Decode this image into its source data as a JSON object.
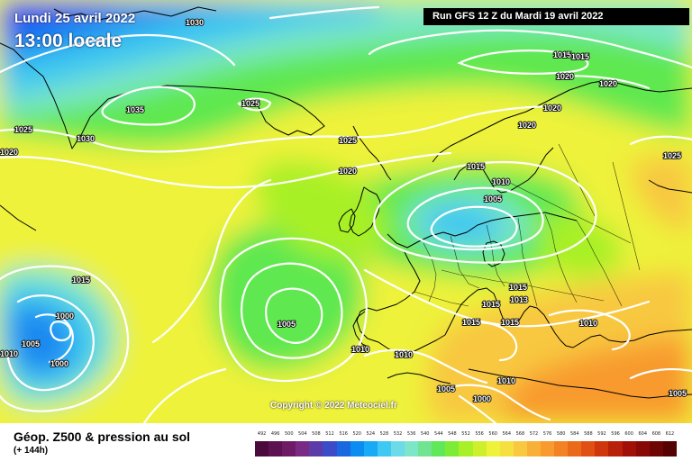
{
  "header": {
    "date": "Lundi 25 avril 2022",
    "time": "13:00 locale",
    "run": "Run GFS 12 Z du Mardi 19 avril 2022"
  },
  "footer": {
    "title": "Géop. Z500 & pression au sol",
    "subtitle": "(+ 144h)",
    "copyright": "Copyright © 2022 Meteociel.fr"
  },
  "legend": {
    "values": [
      "492",
      "496",
      "500",
      "504",
      "508",
      "512",
      "516",
      "520",
      "524",
      "528",
      "532",
      "536",
      "540",
      "544",
      "548",
      "552",
      "556",
      "560",
      "564",
      "568",
      "572",
      "576",
      "580",
      "584",
      "588",
      "592",
      "596",
      "600",
      "604",
      "608",
      "612"
    ],
    "colors": [
      "#4a0a3c",
      "#5c1250",
      "#6e1b66",
      "#7a2a85",
      "#5c3aa8",
      "#3a4cc8",
      "#1a68e0",
      "#0a8cf0",
      "#18aaf5",
      "#3ec8f2",
      "#6cdae8",
      "#7ee6c8",
      "#70e490",
      "#5ee85a",
      "#7eec36",
      "#a8f028",
      "#cef02c",
      "#eef23a",
      "#f6e040",
      "#f8c840",
      "#f8b038",
      "#f89a2e",
      "#f28224",
      "#ea6a1a",
      "#e05012",
      "#d0360c",
      "#b8200a",
      "#a01008",
      "#880806",
      "#6e0404",
      "#540202"
    ]
  },
  "map_layers": {
    "ocean_deep": "#0a3cf0",
    "cold_blue": "#1e88f0",
    "cyan": "#3ec8f0",
    "aqua": "#7ce6c8",
    "green": "#5ee850",
    "lime": "#a8f028",
    "yellow": "#eef23a",
    "light_orange": "#f8c840",
    "orange": "#f89a2e"
  },
  "pressure_labels": [
    {
      "text": "1030"
    },
    {
      "text": "1025"
    },
    {
      "text": "1020"
    },
    {
      "text": "1035"
    },
    {
      "text": "1030"
    },
    {
      "text": "1025"
    },
    {
      "text": "1025"
    },
    {
      "text": "1020"
    },
    {
      "text": "1015"
    },
    {
      "text": "1015"
    },
    {
      "text": "1020"
    },
    {
      "text": "1020"
    },
    {
      "text": "1020"
    },
    {
      "text": "1020"
    },
    {
      "text": "1025"
    },
    {
      "text": "1015"
    },
    {
      "text": "1010"
    },
    {
      "text": "1005"
    },
    {
      "text": "1015"
    },
    {
      "text": "1000"
    },
    {
      "text": "1005"
    },
    {
      "text": "1000"
    },
    {
      "text": "1010"
    },
    {
      "text": "1005"
    },
    {
      "text": "1010"
    },
    {
      "text": "1010"
    },
    {
      "text": "1015"
    },
    {
      "text": "1015"
    },
    {
      "text": "1015"
    },
    {
      "text": "1015"
    },
    {
      "text": "1013"
    },
    {
      "text": "1010"
    },
    {
      "text": "1005"
    },
    {
      "text": "1000"
    },
    {
      "text": "1010"
    },
    {
      "text": "1005"
    }
  ]
}
